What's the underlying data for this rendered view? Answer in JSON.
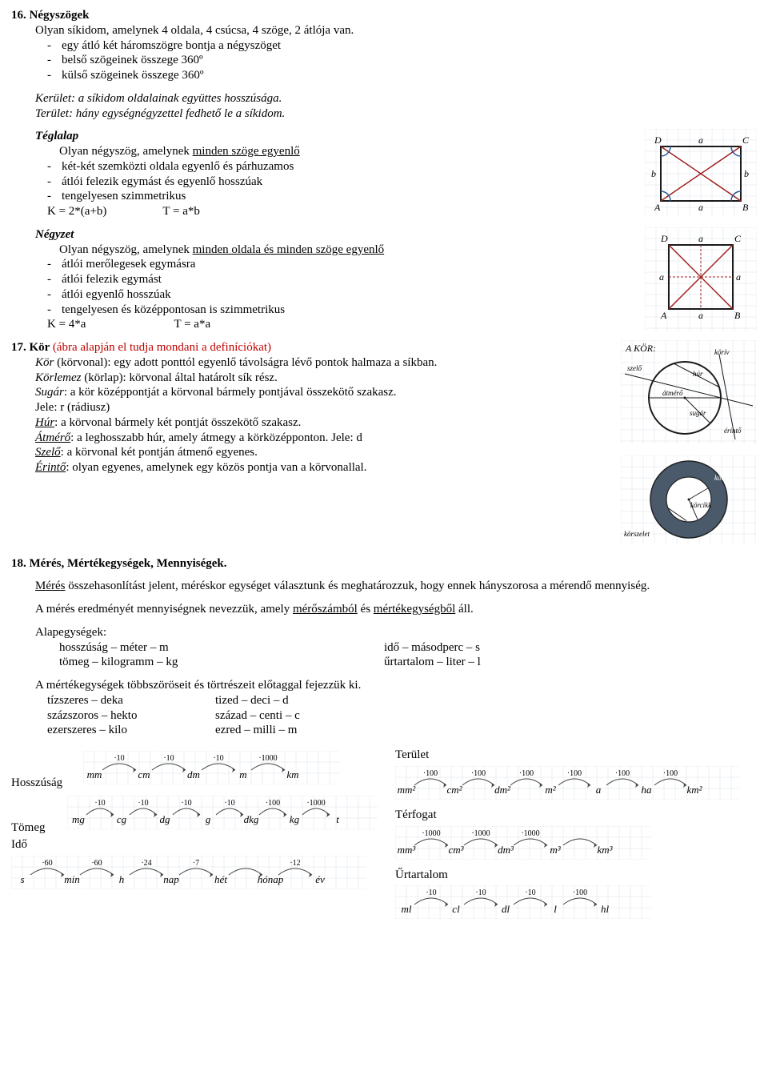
{
  "s16": {
    "heading": "16. Négyszögek",
    "intro": "Olyan síkidom, amelynek 4 oldala, 4 csúcsa, 4 szöge, 2 átlója van.",
    "bullets": [
      "egy átló két háromszögre bontja a négyszöget",
      "belső szögeinek összege 360º",
      "külső szögeinek összege 360º"
    ],
    "kerulet_label": "Kerület:",
    "kerulet_text": " a síkidom oldalainak együttes hosszúsága.",
    "terulet_label": "Terület:",
    "terulet_text": " hány egységnégyzettel fedhető le a síkidom.",
    "teglalap": {
      "title": "Téglalap",
      "lead_pre": "Olyan négyszög, amelynek ",
      "lead_u": "minden szöge egyenlő",
      "bullets": [
        "két-két szemközti oldala egyenlő és párhuzamos",
        "átlói felezik egymást és egyenlő hosszúak",
        "tengelyesen szimmetrikus"
      ],
      "formula_k": "K = 2*(a+b)",
      "formula_t": "T = a*b"
    },
    "negyzet": {
      "title": "Négyzet",
      "lead_pre": "Olyan négyszög, amelynek ",
      "lead_u": "minden oldala és minden szöge egyenlő",
      "bullets": [
        "átlói merőlegesek egymásra",
        "átlói felezik egymást",
        "átlói egyenlő hosszúak",
        "tengelyesen és középpontosan is szimmetrikus"
      ],
      "formula_k": "K = 4*a",
      "formula_t": "T = a*a"
    },
    "rect_fig": {
      "labels": {
        "tl": "D",
        "tr": "C",
        "bl": "A",
        "br": "B",
        "top": "a",
        "right": "b",
        "left": "b",
        "bottom": "a"
      },
      "stroke": "#1a1a1a",
      "diag": "#a02020",
      "grid": "#d8e0e8",
      "arc": "#2a5a9a"
    },
    "square_fig": {
      "labels": {
        "tl": "D",
        "tr": "C",
        "bl": "A",
        "br": "B",
        "top": "a",
        "right": "a",
        "left": "a",
        "bottom": "a"
      },
      "stroke": "#1a1a1a",
      "diag": "#a02020",
      "grid": "#d8e0e8"
    }
  },
  "s17": {
    "heading_num": "17. Kör ",
    "heading_red": "(ábra alapján el tudja mondani a definíciókat)",
    "kor_label": "Kör",
    "kor_text": " (körvonal): egy adott ponttól egyenlő távolságra lévő pontok halmaza a síkban.",
    "korlemez_label": "Körlemez",
    "korlemez_text": " (körlap): körvonal által határolt sík rész.",
    "sugar_label": "Sugár",
    "sugar_text": ": a kör középpontját a körvonal bármely pontjával összekötő szakasz.",
    "jele_r": "Jele: r (rádiusz)",
    "hur_label": "Húr",
    "hur_text": ": a körvonal bármely két pontját összekötő szakasz.",
    "atmero_label": "Átmérő",
    "atmero_text": ": a leghosszabb húr, amely átmegy a körközépponton. Jele: d",
    "szelo_label": "Szelő",
    "szelo_text": ": a körvonal két pontján átmenő egyenes.",
    "erinto_label": "Érintő",
    "erinto_text": ": olyan egyenes, amelynek egy közös pontja van a körvonallal.",
    "circle_fig": {
      "title": "A    KÖR:",
      "stroke": "#1a1a1a",
      "grid": "#d8e0e8",
      "labels": [
        "körív",
        "húr",
        "átmérő",
        "sugár",
        "érintő",
        "szelő"
      ]
    },
    "ring_fig": {
      "outer": "#4a5a6a",
      "inner": "#ffffff",
      "cut": "#888",
      "labels": [
        "körszelet",
        "körcikk",
        "körgyűrű"
      ]
    }
  },
  "s18": {
    "heading": "18. Mérés, Mértékegységek, Mennyiségek.",
    "p1_u": "Mérés",
    "p1_rest": " összehasonlítást jelent, méréskor egységet választunk és meghatározzuk, hogy ennek hányszorosa a mérendő mennyiség.",
    "p2_pre": "A mérés eredményét mennyiségnek nevezzük, amely ",
    "p2_u1": "mérőszámból",
    "p2_mid": " és ",
    "p2_u2": "mértékegységből",
    "p2_end": " áll.",
    "alap_label": "Alapegységek:",
    "alap_left": [
      "hosszúság – méter – m",
      "tömeg – kilogramm – kg"
    ],
    "alap_right": [
      "idő – másodperc – s",
      "űrtartalom – liter – l"
    ],
    "prefix_intro": "A mértékegységek többszöröseit és törtrészeit előtaggal fejezzük ki.",
    "prefix_col1": [
      "tízszeres – deka",
      "százszoros – hekto",
      "ezerszeres – kilo"
    ],
    "prefix_col2": [
      "tized – deci – d",
      "század – centi – c",
      "ezred – milli – m"
    ]
  },
  "units": {
    "hosszusag": {
      "label": "Hosszúság",
      "units": [
        "mm",
        "cm",
        "dm",
        "m",
        "km"
      ],
      "factors": [
        "·10",
        "·10",
        "·10",
        "·1000"
      ],
      "grid": "#d8e0e8",
      "stroke": "#444"
    },
    "tomeg": {
      "label": "Tömeg",
      "units": [
        "mg",
        "cg",
        "dg",
        "g",
        "dkg",
        "kg",
        "t"
      ],
      "factors": [
        "·10",
        "·10",
        "·10",
        "·10",
        "·100",
        "·1000"
      ],
      "grid": "#d8e0e8",
      "stroke": "#444"
    },
    "ido": {
      "label": "Idő",
      "units": [
        "s",
        "min",
        "h",
        "nap",
        "hét",
        "hónap",
        "év"
      ],
      "factors": [
        "·60",
        "·60",
        "·24",
        "·7",
        "",
        "·12"
      ],
      "grid": "#d8e0e8",
      "stroke": "#444"
    },
    "terulet": {
      "label": "Terület",
      "units": [
        "mm²",
        "cm²",
        "dm²",
        "m²",
        "a",
        "ha",
        "km²"
      ],
      "factors": [
        "·100",
        "·100",
        "·100",
        "·100",
        "·100",
        "·100"
      ],
      "grid": "#d8e0e8",
      "stroke": "#444"
    },
    "terfogat": {
      "label": "Térfogat",
      "units": [
        "mm³",
        "cm³",
        "dm³",
        "m³",
        "km³"
      ],
      "factors": [
        "·1000",
        "·1000",
        "·1000",
        "",
        ""
      ],
      "grid": "#d8e0e8",
      "stroke": "#444"
    },
    "urtartalom": {
      "label": "Űrtartalom",
      "units": [
        "ml",
        "cl",
        "dl",
        "l",
        "hl"
      ],
      "factors": [
        "·10",
        "·10",
        "·10",
        "·100"
      ],
      "grid": "#d8e0e8",
      "stroke": "#444"
    }
  }
}
